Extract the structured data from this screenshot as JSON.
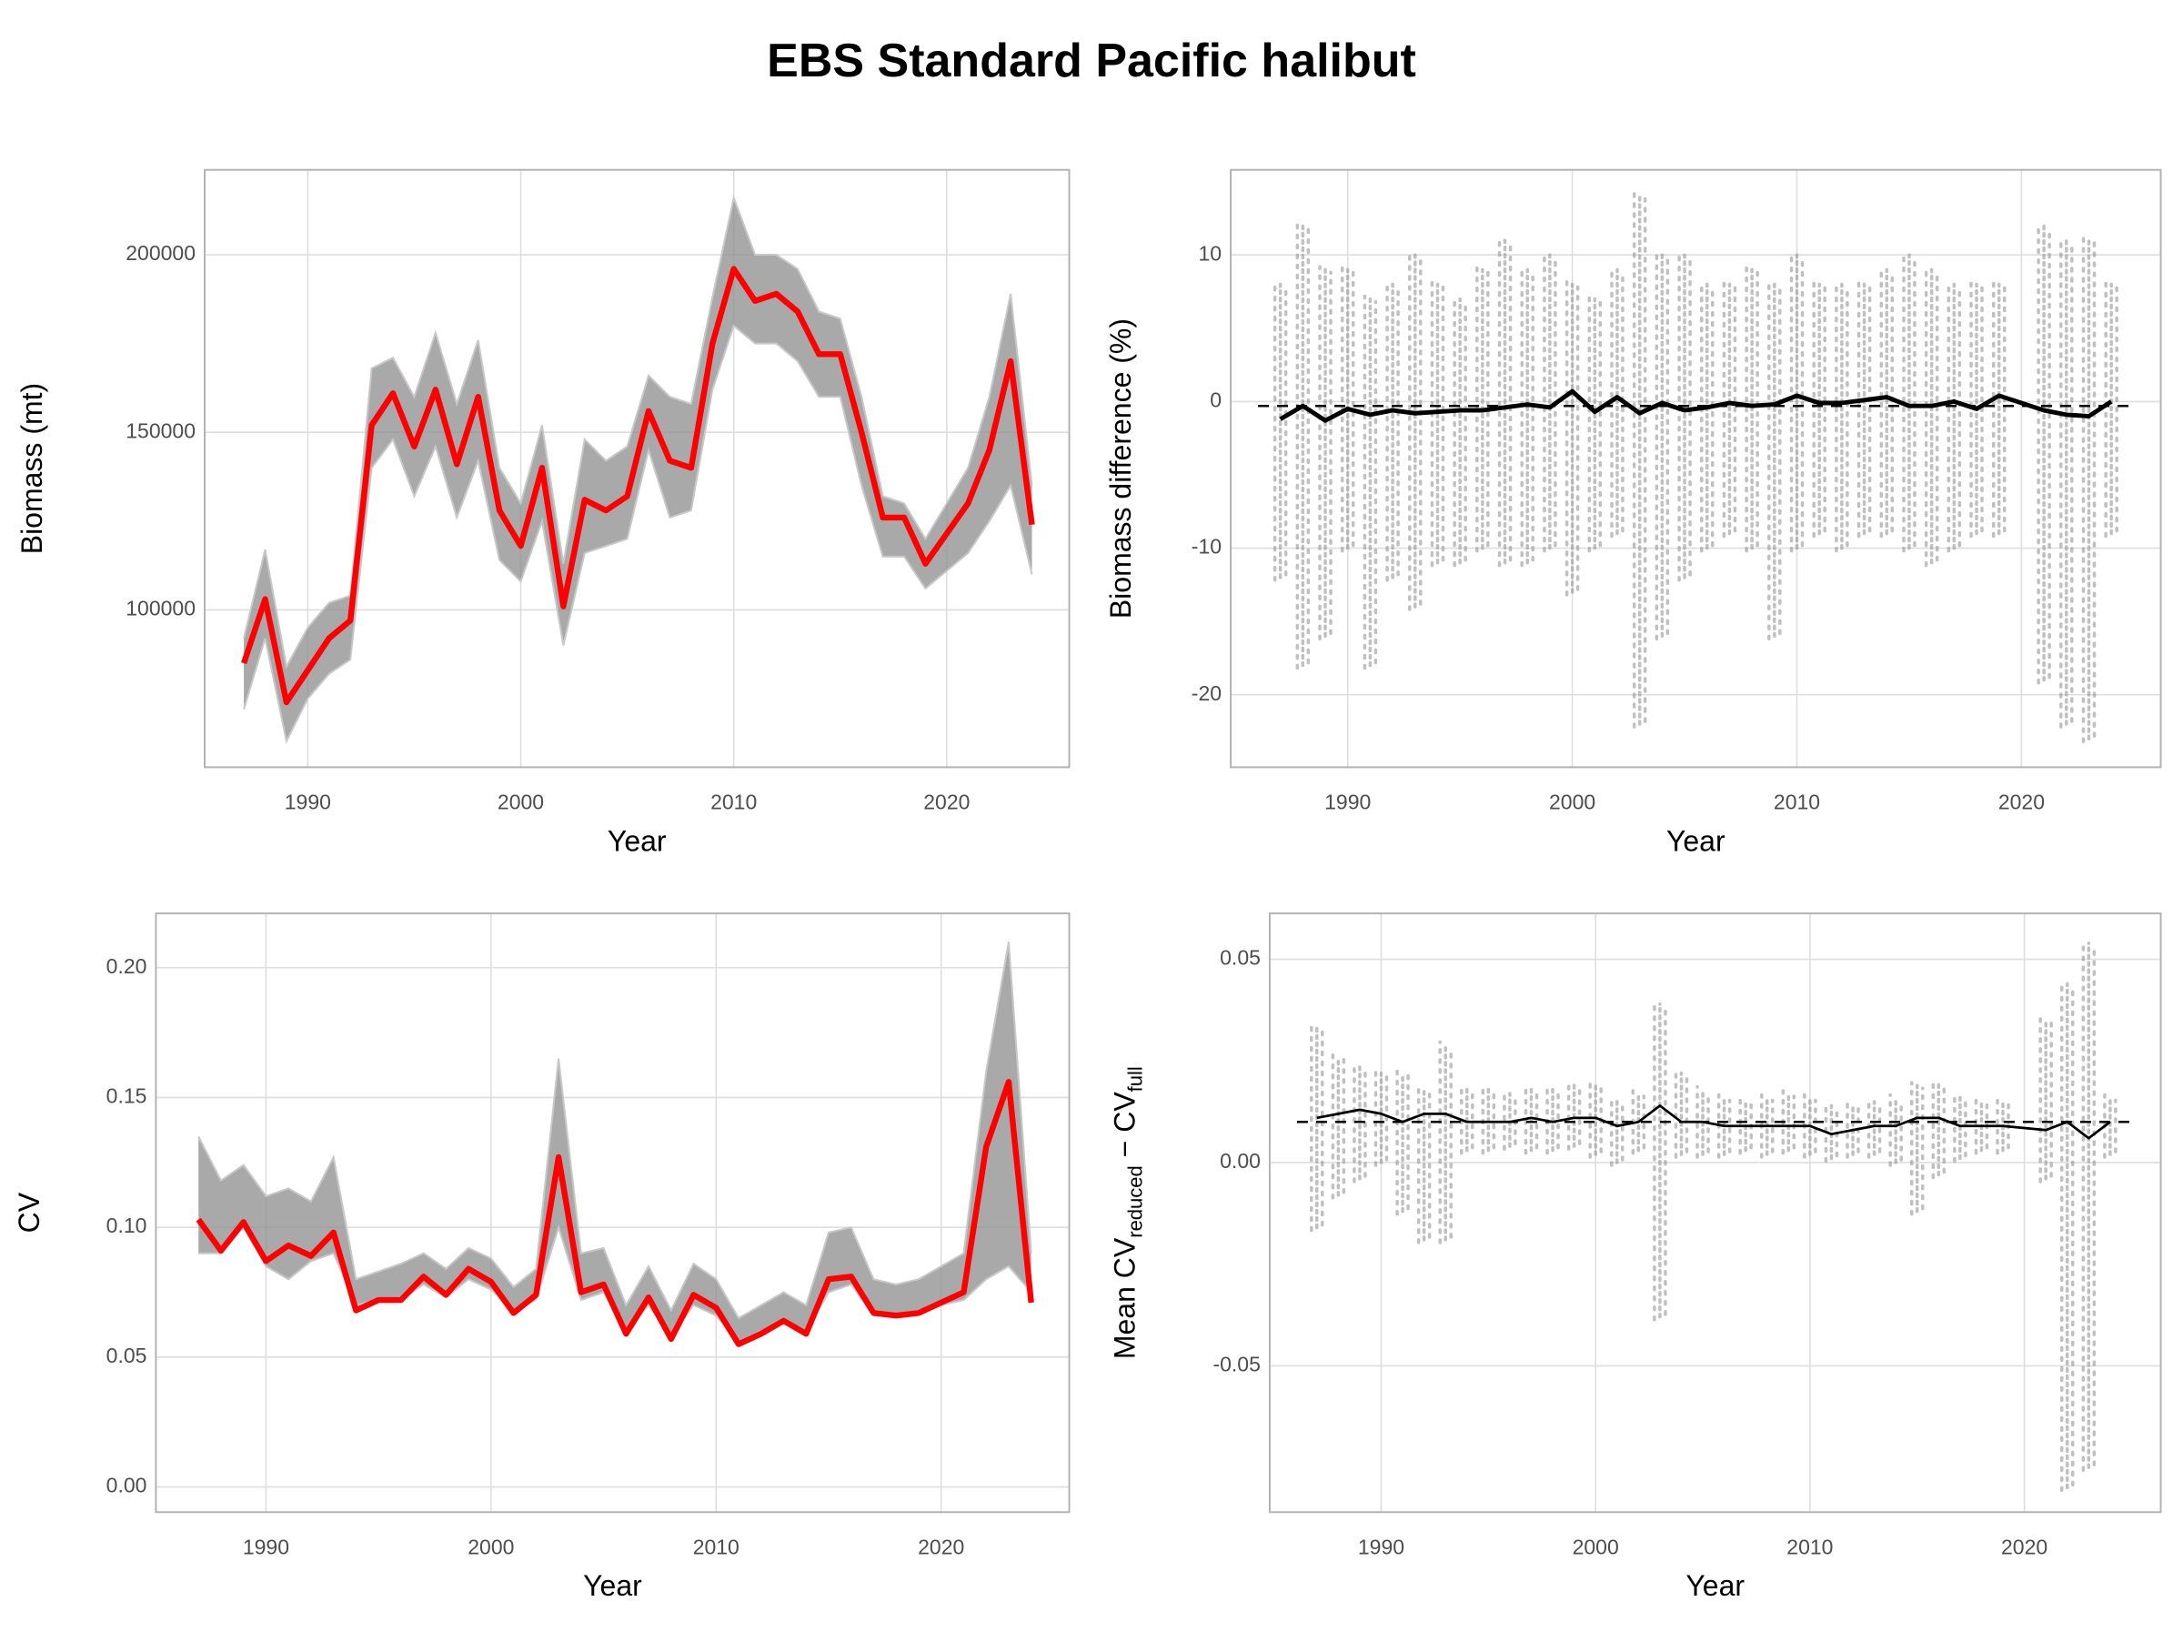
{
  "title": "EBS Standard Pacific halibut",
  "chart_data": [
    {
      "type": "line",
      "xlabel": "Year",
      "ylabel": "Biomass (mt)",
      "x": [
        1987,
        1988,
        1989,
        1990,
        1991,
        1992,
        1993,
        1994,
        1995,
        1996,
        1997,
        1998,
        1999,
        2000,
        2001,
        2002,
        2003,
        2004,
        2005,
        2006,
        2007,
        2008,
        2009,
        2010,
        2011,
        2012,
        2013,
        2014,
        2015,
        2016,
        2017,
        2018,
        2019,
        2021,
        2022,
        2023,
        2024
      ],
      "xlim": [
        1985.16,
        2025.75
      ],
      "xticks": [
        1990,
        2000,
        2010,
        2020
      ],
      "ylim": [
        55700,
        223900
      ],
      "yticks": [
        100000,
        150000,
        200000
      ],
      "series": [
        {
          "kind": "range",
          "color": "#8c8c8c",
          "lower": [
            72000,
            92000,
            63000,
            75000,
            82000,
            86000,
            140000,
            148000,
            132000,
            146000,
            126000,
            142000,
            114000,
            108000,
            125000,
            90000,
            116000,
            118000,
            120000,
            145000,
            126000,
            128000,
            162000,
            180000,
            175000,
            175000,
            170000,
            160000,
            160000,
            135000,
            115000,
            115000,
            106000,
            116000,
            125000,
            135000,
            110000
          ],
          "upper": [
            92000,
            117000,
            84000,
            95000,
            102000,
            104000,
            168000,
            171000,
            160000,
            178000,
            158000,
            176000,
            140000,
            130000,
            152000,
            113000,
            148000,
            142000,
            146000,
            166000,
            160000,
            158000,
            188000,
            216000,
            200000,
            200000,
            196000,
            184000,
            182000,
            160000,
            132000,
            130000,
            120000,
            140000,
            160000,
            189000,
            135000
          ]
        },
        {
          "kind": "line",
          "color": "#ff0000",
          "values": [
            85000,
            103000,
            74000,
            83000,
            92000,
            97000,
            152000,
            161000,
            146000,
            162000,
            141000,
            160000,
            128000,
            118000,
            140000,
            101000,
            131000,
            128000,
            132000,
            156000,
            142000,
            140000,
            175000,
            196000,
            187000,
            189000,
            184000,
            172000,
            172000,
            150000,
            126000,
            126000,
            113000,
            130000,
            145000,
            170000,
            124000
          ]
        }
      ]
    },
    {
      "type": "line",
      "xlabel": "Year",
      "ylabel": "Biomass difference (%)",
      "x": [
        1987,
        1988,
        1989,
        1990,
        1991,
        1992,
        1993,
        1994,
        1995,
        1996,
        1997,
        1998,
        1999,
        2000,
        2001,
        2002,
        2003,
        2004,
        2005,
        2006,
        2007,
        2008,
        2009,
        2010,
        2011,
        2012,
        2013,
        2014,
        2015,
        2016,
        2017,
        2018,
        2019,
        2021,
        2022,
        2023,
        2024
      ],
      "xlim": [
        1984.79,
        2026.2
      ],
      "xticks": [
        1990,
        2000,
        2010,
        2020
      ],
      "ylim": [
        -24.94,
        15.8
      ],
      "yticks": [
        -20,
        -10,
        0,
        10
      ],
      "reference_line": -0.3,
      "series": [
        {
          "kind": "range",
          "color": "#8c8c8c",
          "lower": [
            -12,
            -18,
            -16,
            -10,
            -18,
            -12,
            -14,
            -11,
            -11,
            -10,
            -11,
            -11,
            -10,
            -13,
            -10,
            -9,
            -22,
            -16,
            -12,
            -10,
            -9,
            -10,
            -16,
            -10,
            -9,
            -10,
            -9,
            -9,
            -10,
            -11,
            -10,
            -9,
            -9,
            -19,
            -22,
            -23,
            -9
          ],
          "upper": [
            8,
            12,
            9,
            9,
            7,
            8,
            10,
            8,
            7,
            9,
            11,
            9,
            10,
            8,
            7,
            9,
            14,
            10,
            10,
            8,
            8,
            9,
            8,
            10,
            8,
            8,
            8,
            9,
            10,
            9,
            8,
            8,
            8,
            12,
            11,
            11,
            8
          ]
        },
        {
          "kind": "line",
          "color": "#000000",
          "values": [
            -1.2,
            -0.3,
            -1.3,
            -0.5,
            -0.9,
            -0.6,
            -0.8,
            -0.7,
            -0.6,
            -0.6,
            -0.4,
            -0.2,
            -0.4,
            0.7,
            -0.7,
            0.3,
            -0.8,
            -0.1,
            -0.6,
            -0.4,
            -0.1,
            -0.3,
            -0.2,
            0.4,
            -0.1,
            -0.1,
            0.1,
            0.3,
            -0.3,
            -0.3,
            0,
            -0.5,
            0.4,
            -0.6,
            -0.9,
            -1.0,
            0
          ]
        }
      ]
    },
    {
      "type": "line",
      "xlabel": "Year",
      "ylabel": "CV",
      "x": [
        1987,
        1988,
        1989,
        1990,
        1991,
        1992,
        1993,
        1994,
        1995,
        1996,
        1997,
        1998,
        1999,
        2000,
        2001,
        2002,
        2003,
        2004,
        2005,
        2006,
        2007,
        2008,
        2009,
        2010,
        2011,
        2012,
        2013,
        2014,
        2015,
        2016,
        2017,
        2018,
        2019,
        2021,
        2022,
        2023,
        2024
      ],
      "xlim": [
        1985.11,
        2025.69
      ],
      "xticks": [
        1990,
        2000,
        2010,
        2020
      ],
      "ylim": [
        -0.0097,
        0.2209
      ],
      "yticks": [
        {
          "value": 0,
          "label": "0.00"
        },
        0.05,
        {
          "value": 0.1,
          "label": "0.10"
        },
        0.15,
        {
          "value": 0.2,
          "label": "0.20"
        }
      ],
      "series": [
        {
          "kind": "range",
          "color": "#8c8c8c",
          "lower": [
            0.09,
            0.09,
            0.1,
            0.085,
            0.08,
            0.087,
            0.09,
            0.07,
            0.072,
            0.072,
            0.078,
            0.073,
            0.08,
            0.076,
            0.068,
            0.072,
            0.1,
            0.072,
            0.075,
            0.06,
            0.07,
            0.058,
            0.07,
            0.066,
            0.056,
            0.06,
            0.063,
            0.06,
            0.075,
            0.078,
            0.066,
            0.066,
            0.068,
            0.072,
            0.08,
            0.085,
            0.075
          ],
          "upper": [
            0.135,
            0.118,
            0.124,
            0.112,
            0.115,
            0.11,
            0.127,
            0.08,
            0.083,
            0.086,
            0.09,
            0.084,
            0.092,
            0.088,
            0.077,
            0.084,
            0.165,
            0.09,
            0.092,
            0.07,
            0.085,
            0.068,
            0.086,
            0.08,
            0.065,
            0.07,
            0.075,
            0.07,
            0.098,
            0.1,
            0.08,
            0.078,
            0.08,
            0.09,
            0.16,
            0.21,
            0.09
          ]
        },
        {
          "kind": "line",
          "color": "#ff0000",
          "values": [
            0.103,
            0.091,
            0.102,
            0.087,
            0.093,
            0.089,
            0.098,
            0.068,
            0.072,
            0.072,
            0.081,
            0.074,
            0.084,
            0.079,
            0.067,
            0.074,
            0.127,
            0.075,
            0.078,
            0.059,
            0.073,
            0.057,
            0.074,
            0.069,
            0.055,
            0.059,
            0.064,
            0.059,
            0.08,
            0.081,
            0.067,
            0.066,
            0.067,
            0.075,
            0.131,
            0.156,
            0.071
          ]
        }
      ]
    },
    {
      "type": "line",
      "xlabel": "Year",
      "ylabel_parts": [
        "Mean CV",
        "reduced",
        " − CV",
        "full"
      ],
      "x": [
        1987,
        1988,
        1989,
        1990,
        1991,
        1992,
        1993,
        1994,
        1995,
        1996,
        1997,
        1998,
        1999,
        2000,
        2001,
        2002,
        2003,
        2004,
        2005,
        2006,
        2007,
        2008,
        2009,
        2010,
        2011,
        2012,
        2013,
        2014,
        2015,
        2016,
        2017,
        2018,
        2019,
        2021,
        2022,
        2023,
        2024
      ],
      "xlim": [
        1984.8,
        2026.36
      ],
      "xticks": [
        1990,
        2000,
        2010,
        2020
      ],
      "ylim": [
        -0.086,
        0.0613
      ],
      "yticks": [
        -0.05,
        {
          "value": 0,
          "label": "0.00"
        },
        0.05
      ],
      "reference_line": 0.01,
      "series": [
        {
          "kind": "range",
          "color": "#8c8c8c",
          "lower": [
            -0.016,
            -0.008,
            -0.004,
            0,
            -0.012,
            -0.019,
            -0.019,
            0.003,
            0.003,
            0.004,
            0.003,
            0.003,
            0.004,
            0.002,
            0,
            0.003,
            -0.038,
            0.002,
            0.002,
            0.002,
            0.003,
            0.002,
            0.003,
            0.002,
            0.001,
            0.002,
            0.002,
            0,
            -0.012,
            -0.003,
            0.001,
            0.003,
            0.003,
            -0.004,
            -0.08,
            -0.075,
            0.002
          ],
          "upper": [
            0.033,
            0.026,
            0.024,
            0.022,
            0.022,
            0.018,
            0.029,
            0.018,
            0.018,
            0.017,
            0.018,
            0.018,
            0.019,
            0.019,
            0.015,
            0.017,
            0.039,
            0.022,
            0.018,
            0.016,
            0.015,
            0.016,
            0.017,
            0.016,
            0.014,
            0.014,
            0.015,
            0.016,
            0.019,
            0.02,
            0.016,
            0.015,
            0.015,
            0.035,
            0.044,
            0.054,
            0.016
          ]
        },
        {
          "kind": "line",
          "color": "#000000",
          "values": [
            0.011,
            0.012,
            0.013,
            0.012,
            0.01,
            0.012,
            0.012,
            0.01,
            0.01,
            0.01,
            0.011,
            0.01,
            0.011,
            0.011,
            0.009,
            0.01,
            0.014,
            0.01,
            0.01,
            0.009,
            0.009,
            0.009,
            0.009,
            0.009,
            0.007,
            0.008,
            0.009,
            0.009,
            0.011,
            0.011,
            0.009,
            0.009,
            0.009,
            0.008,
            0.01,
            0.006,
            0.01
          ]
        }
      ]
    }
  ]
}
